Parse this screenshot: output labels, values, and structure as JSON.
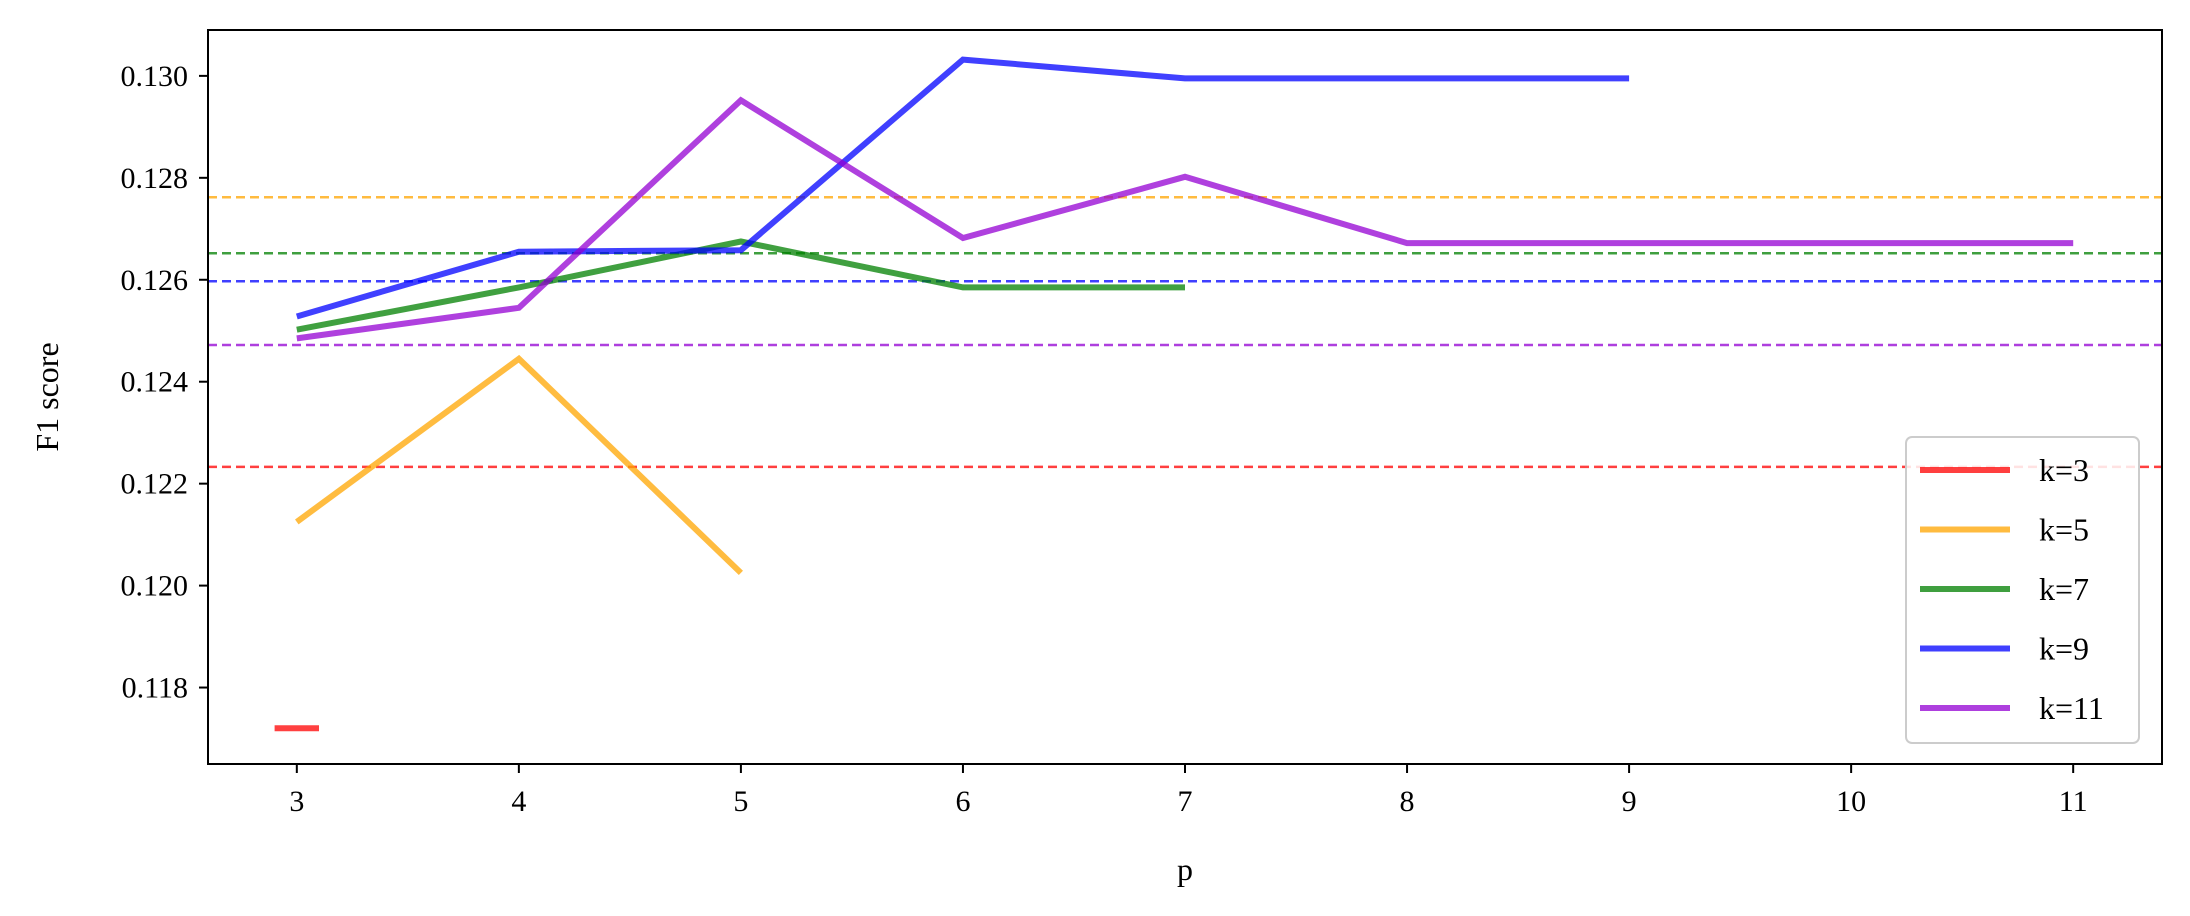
{
  "chart_data": {
    "type": "line",
    "title": "",
    "xlabel": "p",
    "ylabel": "F1 score",
    "xlim": [
      2.6,
      11.4
    ],
    "ylim": [
      0.1165,
      0.1309
    ],
    "xticks": [
      3,
      4,
      5,
      6,
      7,
      8,
      9,
      10,
      11
    ],
    "yticks": [
      0.118,
      0.12,
      0.122,
      0.124,
      0.126,
      0.128,
      0.13
    ],
    "grid": false,
    "legend_position": "lower-right",
    "series": [
      {
        "name": "k=3",
        "color": "#ff0000",
        "x": [
          2.9,
          3.1
        ],
        "y": [
          0.1172,
          0.1172
        ],
        "baseline": 0.12233
      },
      {
        "name": "k=5",
        "color": "#ffa500",
        "x": [
          3,
          4,
          5
        ],
        "y": [
          0.12125,
          0.12445,
          0.12025
        ],
        "baseline": 0.12762
      },
      {
        "name": "k=7",
        "color": "#008000",
        "x": [
          3,
          4,
          5,
          6,
          7
        ],
        "y": [
          0.12502,
          0.12585,
          0.12675,
          0.12585,
          0.12585
        ],
        "baseline": 0.12652
      },
      {
        "name": "k=9",
        "color": "#0000ff",
        "x": [
          3,
          4,
          5,
          6,
          7,
          8,
          9
        ],
        "y": [
          0.12528,
          0.12655,
          0.12658,
          0.13032,
          0.12995,
          0.12995,
          0.12995
        ],
        "baseline": 0.12597
      },
      {
        "name": "k=11",
        "color": "#9400d3",
        "x": [
          3,
          4,
          5,
          6,
          7,
          8,
          9,
          10,
          11
        ],
        "y": [
          0.12485,
          0.12545,
          0.12952,
          0.12682,
          0.12802,
          0.12672,
          0.12672,
          0.12672,
          0.12672
        ],
        "baseline": 0.12472
      }
    ]
  }
}
